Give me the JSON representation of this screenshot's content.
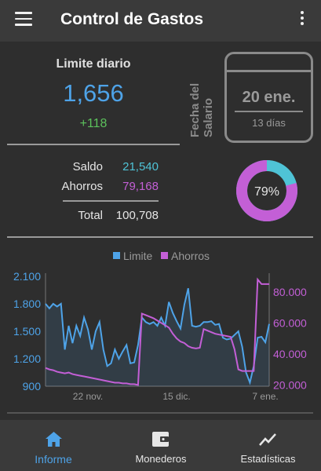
{
  "appbar": {
    "title": "Control de Gastos"
  },
  "summary": {
    "limite_label": "Limite diario",
    "limite_value": "1,656",
    "limite_delta": "+118",
    "salary_label_line1": "Fecha del",
    "salary_label_line2": "Salario",
    "salary_date": "20 ene.",
    "salary_days": "13 días"
  },
  "balances": {
    "saldo_label": "Saldo",
    "saldo_value": "21,540",
    "ahorros_label": "Ahorros",
    "ahorros_value": "79,168",
    "total_label": "Total",
    "total_value": "100,708"
  },
  "donut": {
    "percent_label": "79%",
    "fraction": 0.79
  },
  "colors": {
    "limite": "#4ea3e8",
    "ahorros": "#c35fd6",
    "saldo": "#4fc3d6",
    "delta": "#5cc15c"
  },
  "chart_data": {
    "type": "line",
    "legend": [
      "Limite",
      "Ahorros"
    ],
    "legend_position": "top",
    "x_ticks": [
      {
        "label": "22 nov.",
        "index": 11
      },
      {
        "label": "15 dic.",
        "index": 34
      },
      {
        "label": "7 ene.",
        "index": 57
      }
    ],
    "y_left": {
      "ticks": [
        "2.100",
        "1.800",
        "1.500",
        "1.200",
        "900"
      ],
      "range": [
        900,
        2100
      ]
    },
    "y_right": {
      "ticks": [
        "80.000",
        "60.000",
        "40.000",
        "20.000"
      ],
      "range": [
        19200,
        90000
      ]
    },
    "series": [
      {
        "name": "Limite",
        "axis": "left",
        "values": [
          1800,
          1750,
          1800,
          1770,
          1800,
          1300,
          1560,
          1370,
          1560,
          1450,
          1650,
          1520,
          1300,
          1500,
          1600,
          1300,
          1120,
          1150,
          1300,
          1200,
          1280,
          1350,
          1150,
          1160,
          1350,
          1650,
          1600,
          1580,
          1600,
          1560,
          1650,
          1560,
          1820,
          1700,
          1610,
          1530,
          1790,
          1970,
          1560,
          1550,
          1560,
          1600,
          1600,
          1610,
          1570,
          1580,
          1430,
          1410,
          1420,
          1460,
          1500,
          1330,
          1050,
          940,
          1120,
          1430,
          1440,
          1380,
          1580
        ]
      },
      {
        "name": "Ahorros",
        "axis": "right",
        "values": [
          31000,
          30000,
          29500,
          28500,
          28000,
          27500,
          28000,
          27000,
          26500,
          26000,
          25500,
          25000,
          24500,
          24000,
          23500,
          23000,
          22500,
          22000,
          21500,
          21500,
          21000,
          21000,
          20500,
          20500,
          20000,
          66000,
          65000,
          64000,
          63000,
          61500,
          60000,
          58500,
          57000,
          53000,
          50000,
          48000,
          47000,
          45000,
          44000,
          43500,
          44000,
          56000,
          55000,
          54000,
          53000,
          52500,
          52000,
          51500,
          51000,
          43000,
          30000,
          29000,
          29000,
          29000,
          29000,
          88000,
          85000,
          85000,
          85000
        ]
      }
    ]
  },
  "nav": {
    "informe": "Informe",
    "monederos": "Monederos",
    "estadisticas": "Estadísticas"
  }
}
